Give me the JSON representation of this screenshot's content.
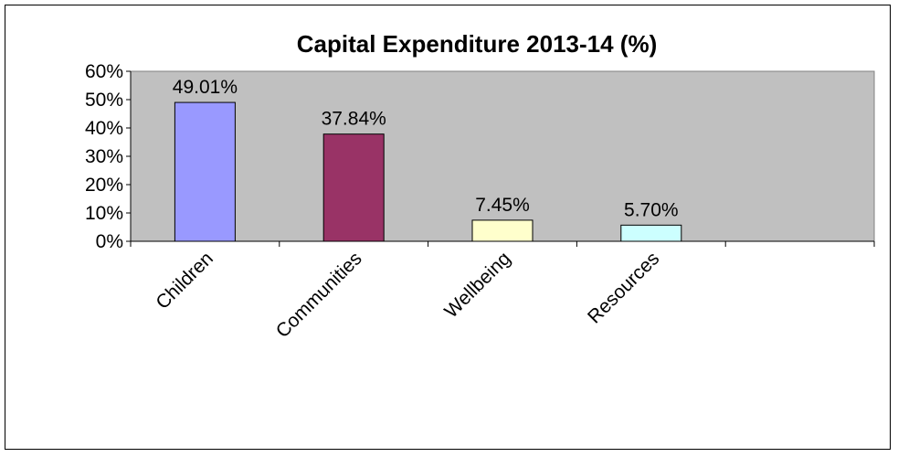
{
  "chart_data": {
    "type": "bar",
    "title": "Capital Expenditure 2013-14 (%)",
    "categories": [
      "Children",
      "Communities",
      "Wellbeing",
      "Resources"
    ],
    "values": [
      49.01,
      37.84,
      7.45,
      5.7
    ],
    "data_labels": [
      "49.01%",
      "37.84%",
      "7.45%",
      "5.70%"
    ],
    "bar_colors": [
      "#9999ff",
      "#993366",
      "#ffffcc",
      "#ccffff"
    ],
    "plot_background": "#c0c0c0",
    "ylim": [
      0,
      60
    ],
    "yticks": [
      0,
      10,
      20,
      30,
      40,
      50,
      60
    ],
    "ytick_labels": [
      "0%",
      "10%",
      "20%",
      "30%",
      "40%",
      "50%",
      "60%"
    ],
    "category_slots": 5,
    "grid": false,
    "legend": "none"
  }
}
